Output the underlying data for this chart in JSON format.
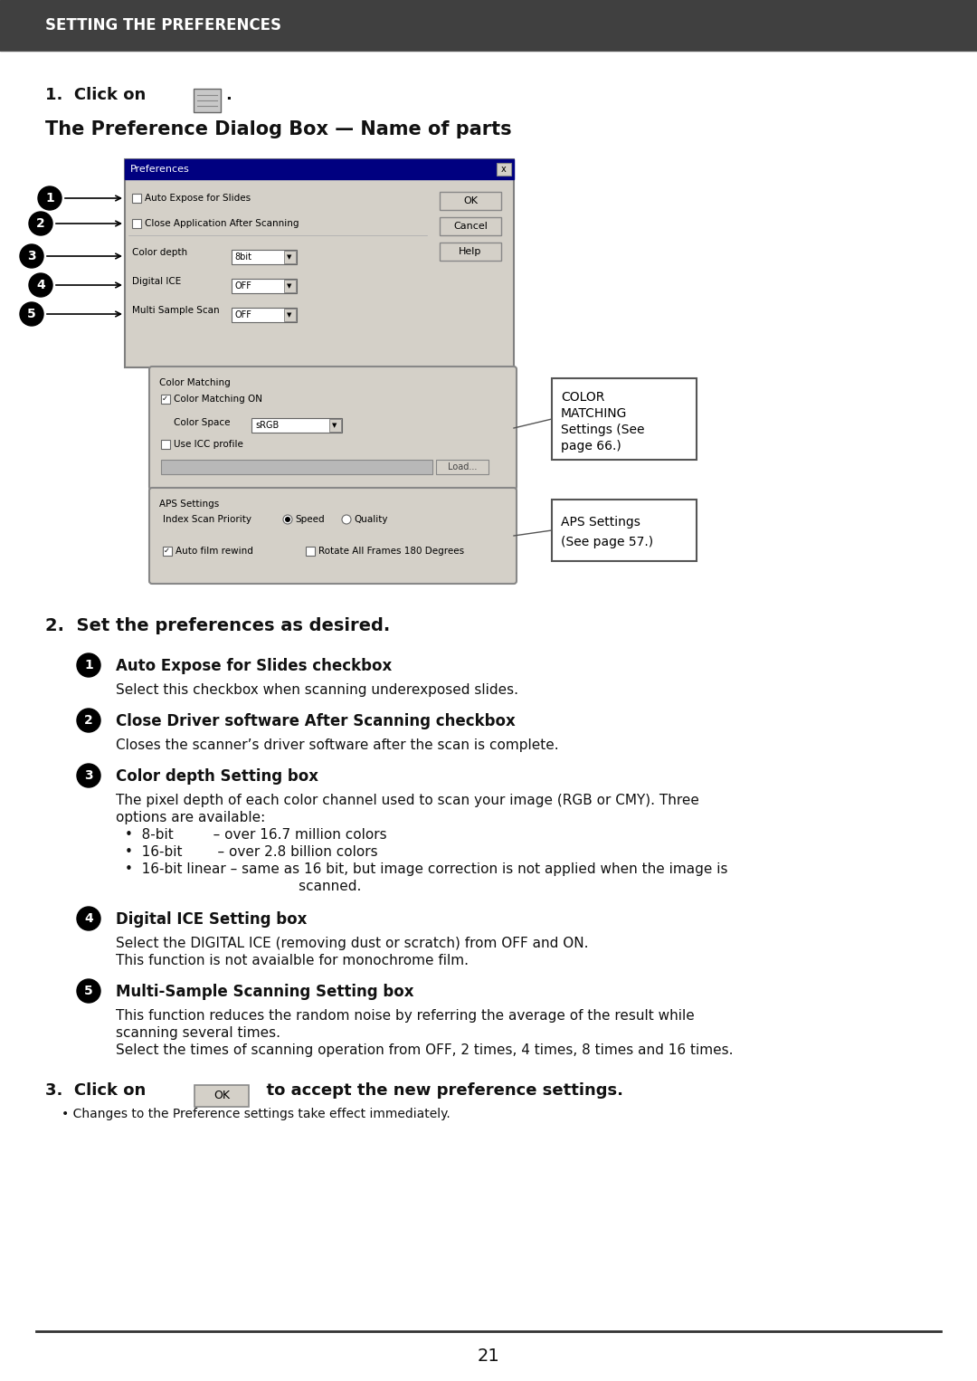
{
  "bg_color": "#ffffff",
  "header_bg": "#404040",
  "header_text": "SETTING THE PREFERENCES",
  "header_text_color": "#ffffff",
  "page_number": "21",
  "dialog_title": "The Preference Dialog Box — Name of parts",
  "step2_title": "2.  Set the preferences as desired.",
  "items": [
    {
      "num": "1",
      "bold": "Auto Expose for Slides checkbox",
      "text": "Select this checkbox when scanning underexposed slides.",
      "text_lines": 1
    },
    {
      "num": "2",
      "bold": "Close Driver software After Scanning checkbox",
      "text": "Closes the scanner’s driver software after the scan is complete.",
      "text_lines": 1
    },
    {
      "num": "3",
      "bold": "Color depth Setting box",
      "text": "The pixel depth of each color channel used to scan your image (RGB or CMY). Three\noptions are available:",
      "text_lines": 2,
      "bullets": [
        "•  8-bit         – over 16.7 million colors",
        "•  16-bit        – over 2.8 billion colors",
        "•  16-bit linear – same as 16 bit, but image correction is not applied when the image is\n                       scanned."
      ],
      "bullet_lines": [
        1,
        1,
        2
      ]
    },
    {
      "num": "4",
      "bold": "Digital ICE Setting box",
      "text": "Select the DIGITAL ICE (removing dust or scratch) from OFF and ON.\nThis function is not avaialble for monochrome film.",
      "text_lines": 2
    },
    {
      "num": "5",
      "bold": "Multi-Sample Scanning Setting box",
      "text": "This function reduces the random noise by referring the average of the result while\nscanning several times.\nSelect the times of scanning operation from OFF, 2 times, 4 times, 8 times and 16 times.",
      "text_lines": 3
    }
  ],
  "step3_note": "• Changes to the Preference settings take effect immediately."
}
